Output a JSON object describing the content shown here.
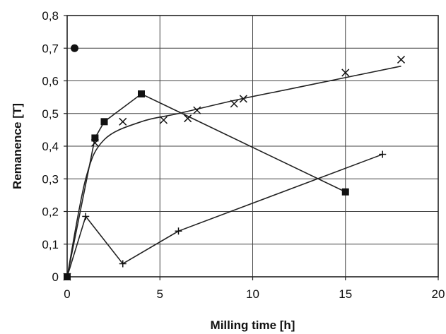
{
  "chart_data": {
    "type": "scatter",
    "title": "",
    "xlabel": "Milling time [h]",
    "ylabel": "Remanence [T]",
    "xlim": [
      0,
      20
    ],
    "ylim": [
      0,
      0.8
    ],
    "x_ticks": [
      0,
      5,
      10,
      15,
      20
    ],
    "y_ticks": [
      0,
      0.1,
      0.2,
      0.3,
      0.4,
      0.5,
      0.6,
      0.7,
      0.8
    ],
    "x_tick_labels": [
      "0",
      "5",
      "10",
      "15",
      "20"
    ],
    "y_tick_labels": [
      "0",
      "0,1",
      "0,2",
      "0,3",
      "0,4",
      "0,5",
      "0,6",
      "0,7",
      "0,8"
    ],
    "grid": true,
    "legend": false,
    "series": [
      {
        "marker": "square",
        "line": "straight",
        "points": [
          {
            "x": 0,
            "y": 0.0
          },
          {
            "x": 1.5,
            "y": 0.425
          },
          {
            "x": 2.0,
            "y": 0.475
          },
          {
            "x": 4.0,
            "y": 0.56
          },
          {
            "x": 15.0,
            "y": 0.26
          }
        ]
      },
      {
        "marker": "x",
        "line": "smooth-fit",
        "points": [
          {
            "x": 0,
            "y": 0.0
          },
          {
            "x": 1.5,
            "y": 0.41
          },
          {
            "x": 3.0,
            "y": 0.475
          },
          {
            "x": 5.2,
            "y": 0.48
          },
          {
            "x": 6.5,
            "y": 0.485
          },
          {
            "x": 7.0,
            "y": 0.51
          },
          {
            "x": 9.0,
            "y": 0.53
          },
          {
            "x": 9.5,
            "y": 0.545
          },
          {
            "x": 15.0,
            "y": 0.625
          },
          {
            "x": 18.0,
            "y": 0.665
          }
        ],
        "fit_line": [
          {
            "x": 0,
            "y": 0.0
          },
          {
            "x": 1.0,
            "y": 0.3
          },
          {
            "x": 2.0,
            "y": 0.42
          },
          {
            "x": 4.0,
            "y": 0.475
          },
          {
            "x": 6.0,
            "y": 0.5
          },
          {
            "x": 9.0,
            "y": 0.54
          },
          {
            "x": 12.0,
            "y": 0.575
          },
          {
            "x": 15.0,
            "y": 0.61
          },
          {
            "x": 18.0,
            "y": 0.645
          }
        ]
      },
      {
        "marker": "plus",
        "line": "straight",
        "points": [
          {
            "x": 0,
            "y": 0.0
          },
          {
            "x": 1.0,
            "y": 0.185
          },
          {
            "x": 3.0,
            "y": 0.04
          },
          {
            "x": 6.0,
            "y": 0.14
          },
          {
            "x": 17.0,
            "y": 0.375
          }
        ]
      },
      {
        "marker": "circle",
        "line": "none",
        "points": [
          {
            "x": 0.4,
            "y": 0.7
          }
        ]
      }
    ]
  }
}
